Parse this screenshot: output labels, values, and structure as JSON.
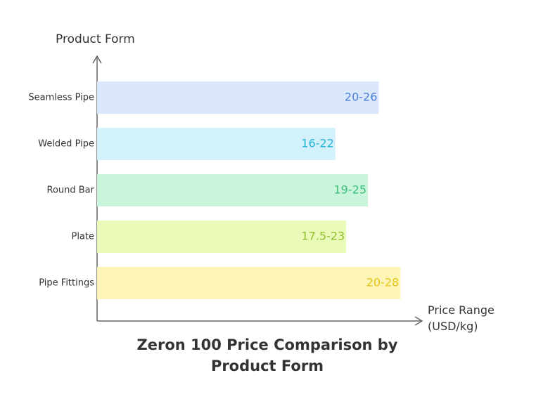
{
  "chart_data": {
    "type": "bar",
    "orientation": "horizontal",
    "title": "Zeron 100 Price Comparison by Product Form",
    "x_label": "Price Range (USD/kg)",
    "y_label": "Product Form",
    "categories": [
      "Seamless Pipe",
      "Welded Pipe",
      "Round Bar",
      "Plate",
      "Pipe Fittings"
    ],
    "values": [
      26,
      22,
      25,
      23,
      28
    ],
    "value_labels": [
      "20-26",
      "16-22",
      "19-25",
      "17.5-23",
      "20-28"
    ],
    "colors": [
      "#dbe7fb",
      "#d3f1fb",
      "#c9f5dd",
      "#e9fab9",
      "#fdf5b8"
    ],
    "label_colors": [
      "#4a7fd6",
      "#22b5d8",
      "#3fbe79",
      "#8fbf2f",
      "#e6c619"
    ],
    "xlim": [
      0,
      30
    ]
  }
}
